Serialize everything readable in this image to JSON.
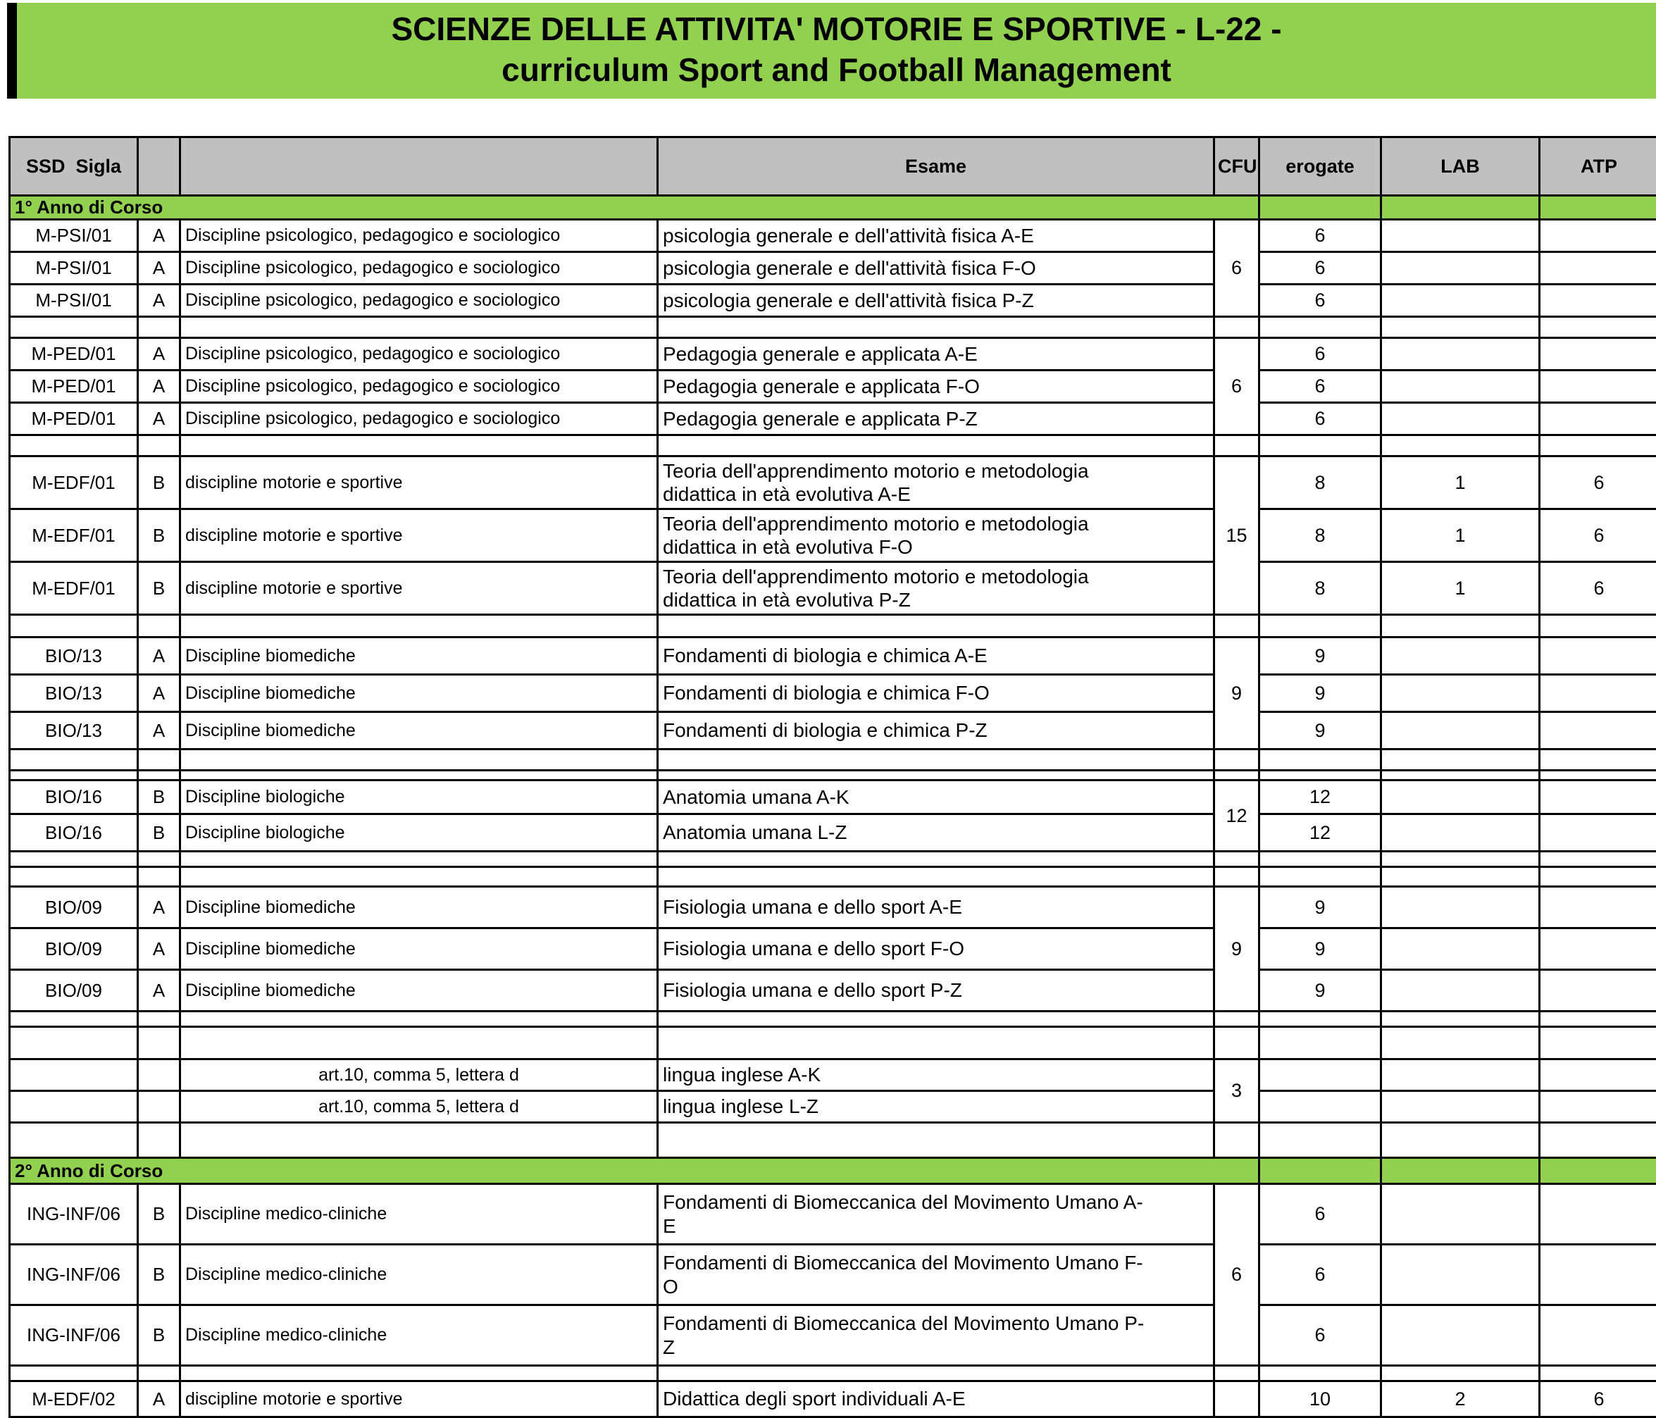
{
  "title": {
    "line1": "SCIENZE DELLE ATTIVITA' MOTORIE E SPORTIVE - L-22 -",
    "line2": "curriculum Sport and Football Management"
  },
  "colors": {
    "banner_green": "#92D050",
    "header_gray": "#C0C0C0",
    "border_black": "#000000"
  },
  "table": {
    "headers": {
      "ssd": "SSD  Sigla",
      "tipo": "",
      "ambito": "",
      "esame": "Esame",
      "cfu": "CFU",
      "erogate": "erogate",
      "lab": "LAB",
      "atp": "ATP"
    },
    "rows": [
      {
        "type": "section",
        "label": "1° Anno di Corso",
        "h": 32
      },
      {
        "type": "course",
        "h": 46,
        "ssd": "M-PSI/01",
        "tipo": "A",
        "ambito": "Discipline psicologico, pedagogico e sociologico",
        "esame": "psicologia generale e dell'attività fisica A-E",
        "cfu": {
          "value": "6",
          "span": 3
        },
        "erogate": "6",
        "lab": "",
        "atp": ""
      },
      {
        "type": "course",
        "h": 46,
        "ssd": "M-PSI/01",
        "tipo": "A",
        "ambito": "Discipline psicologico, pedagogico e sociologico",
        "esame": "psicologia generale e dell'attività fisica F-O",
        "cfu": "merged",
        "erogate": "6",
        "lab": "",
        "atp": ""
      },
      {
        "type": "course",
        "h": 46,
        "ssd": "M-PSI/01",
        "tipo": "A",
        "ambito": "Discipline psicologico, pedagogico e sociologico",
        "esame": "psicologia generale e dell'attività fisica P-Z",
        "cfu": "merged",
        "erogate": "6",
        "lab": "",
        "atp": ""
      },
      {
        "type": "spacer",
        "h": 30
      },
      {
        "type": "course",
        "h": 46,
        "ssd": "M-PED/01",
        "tipo": "A",
        "ambito": "Discipline psicologico, pedagogico e sociologico",
        "esame": "Pedagogia generale e applicata A-E",
        "cfu": {
          "value": "6",
          "span": 3
        },
        "erogate": "6",
        "lab": "",
        "atp": ""
      },
      {
        "type": "course",
        "h": 46,
        "ssd": "M-PED/01",
        "tipo": "A",
        "ambito": "Discipline psicologico, pedagogico e sociologico",
        "esame": "Pedagogia generale e applicata F-O",
        "cfu": "merged",
        "erogate": "6",
        "lab": "",
        "atp": ""
      },
      {
        "type": "course",
        "h": 46,
        "ssd": "M-PED/01",
        "tipo": "A",
        "ambito": "Discipline psicologico, pedagogico e sociologico",
        "esame": "Pedagogia generale e applicata P-Z",
        "cfu": "merged",
        "erogate": "6",
        "lab": "",
        "atp": ""
      },
      {
        "type": "spacer",
        "h": 30
      },
      {
        "type": "course",
        "h": 75,
        "ssd": "M-EDF/01",
        "tipo": "B",
        "ambito": "discipline motorie e sportive",
        "esame": "Teoria dell'apprendimento motorio e metodologia\ndidattica in età evolutiva A-E",
        "cfu": {
          "value": "15",
          "span": 3
        },
        "erogate": "8",
        "lab": "1",
        "atp": "6"
      },
      {
        "type": "course",
        "h": 75,
        "ssd": "M-EDF/01",
        "tipo": "B",
        "ambito": "discipline motorie e sportive",
        "esame": "Teoria dell'apprendimento motorio e metodologia\ndidattica in età evolutiva F-O",
        "cfu": "merged",
        "erogate": "8",
        "lab": "1",
        "atp": "6"
      },
      {
        "type": "course",
        "h": 75,
        "ssd": "M-EDF/01",
        "tipo": "B",
        "ambito": "discipline motorie e sportive",
        "esame": "Teoria dell'apprendimento motorio e metodologia\ndidattica in età evolutiva P-Z",
        "cfu": "merged",
        "erogate": "8",
        "lab": "1",
        "atp": "6"
      },
      {
        "type": "spacer",
        "h": 32
      },
      {
        "type": "course",
        "h": 53,
        "ssd": "BIO/13",
        "tipo": "A",
        "ambito": "Discipline biomediche",
        "esame": "Fondamenti di biologia e chimica A-E",
        "cfu": {
          "value": "9",
          "span": 3
        },
        "erogate": "9",
        "lab": "",
        "atp": ""
      },
      {
        "type": "course",
        "h": 53,
        "ssd": "BIO/13",
        "tipo": "A",
        "ambito": "Discipline biomediche",
        "esame": "Fondamenti di biologia e chimica F-O",
        "cfu": "merged",
        "erogate": "9",
        "lab": "",
        "atp": ""
      },
      {
        "type": "course",
        "h": 53,
        "ssd": "BIO/13",
        "tipo": "A",
        "ambito": "Discipline biomediche",
        "esame": "Fondamenti di biologia e chimica P-Z",
        "cfu": "merged",
        "erogate": "9",
        "lab": "",
        "atp": ""
      },
      {
        "type": "spacer",
        "h": 30
      },
      {
        "type": "spacer",
        "h": 14
      },
      {
        "type": "course",
        "h": 48,
        "ssd": "BIO/16",
        "tipo": "B",
        "ambito": "Discipline biologiche",
        "esame": "Anatomia umana A-K",
        "cfu": {
          "value": "12",
          "span": 2
        },
        "erogate": "12",
        "lab": "",
        "atp": ""
      },
      {
        "type": "course",
        "h": 53,
        "ssd": "BIO/16",
        "tipo": "B",
        "ambito": "Discipline biologiche",
        "esame": "Anatomia umana L-Z",
        "cfu": "merged",
        "erogate": "12",
        "lab": "",
        "atp": ""
      },
      {
        "type": "spacer",
        "h": 22
      },
      {
        "type": "spacer",
        "h": 28
      },
      {
        "type": "course",
        "h": 59,
        "ssd": "BIO/09",
        "tipo": "A",
        "ambito": "Discipline biomediche",
        "esame": "Fisiologia umana e dello sport A-E",
        "cfu": {
          "value": "9",
          "span": 3
        },
        "erogate": "9",
        "lab": "",
        "atp": ""
      },
      {
        "type": "course",
        "h": 59,
        "ssd": "BIO/09",
        "tipo": "A",
        "ambito": "Discipline biomediche",
        "esame": "Fisiologia umana e dello sport F-O",
        "cfu": "merged",
        "erogate": "9",
        "lab": "",
        "atp": ""
      },
      {
        "type": "course",
        "h": 59,
        "ssd": "BIO/09",
        "tipo": "A",
        "ambito": "Discipline biomediche",
        "esame": "Fisiologia umana e dello sport P-Z",
        "cfu": "merged",
        "erogate": "9",
        "lab": "",
        "atp": ""
      },
      {
        "type": "spacer",
        "h": 22
      },
      {
        "type": "spacer",
        "h": 46
      },
      {
        "type": "course",
        "h": 45,
        "ssd": "",
        "tipo": "",
        "ambito": "art.10, comma 5, lettera d",
        "ambito_align": "center",
        "esame": "lingua inglese A-K",
        "cfu": {
          "value": "3",
          "span": 2
        },
        "erogate": "",
        "lab": "",
        "atp": ""
      },
      {
        "type": "course",
        "h": 45,
        "ssd": "",
        "tipo": "",
        "ambito": "art.10, comma 5, lettera d",
        "ambito_align": "center",
        "esame": "lingua inglese L-Z",
        "cfu": "merged",
        "erogate": "",
        "lab": "",
        "atp": ""
      },
      {
        "type": "spacer",
        "h": 50
      },
      {
        "type": "section",
        "label": "2° Anno di Corso",
        "h": 37
      },
      {
        "type": "course",
        "h": 86,
        "ssd": "ING-INF/06",
        "tipo": "B",
        "ambito": "Discipline medico-cliniche",
        "esame": "Fondamenti di Biomeccanica del Movimento Umano A-\nE",
        "cfu": {
          "value": "6",
          "span": 3
        },
        "erogate": "6",
        "lab": "",
        "atp": ""
      },
      {
        "type": "course",
        "h": 86,
        "ssd": "ING-INF/06",
        "tipo": "B",
        "ambito": "Discipline medico-cliniche",
        "esame": "Fondamenti di Biomeccanica del Movimento Umano F-\nO",
        "cfu": "merged",
        "erogate": "6",
        "lab": "",
        "atp": ""
      },
      {
        "type": "course",
        "h": 86,
        "ssd": "ING-INF/06",
        "tipo": "B",
        "ambito": "Discipline medico-cliniche",
        "esame": "Fondamenti di Biomeccanica del Movimento Umano P-\nZ",
        "cfu": "merged",
        "erogate": "6",
        "lab": "",
        "atp": ""
      },
      {
        "type": "spacer",
        "h": 22
      },
      {
        "type": "course",
        "h": 51,
        "ssd": "M-EDF/02",
        "tipo": "A",
        "ambito": "discipline motorie e sportive",
        "esame": "Didattica degli sport individuali A-E",
        "cfu": "open",
        "erogate": "10",
        "lab": "2",
        "atp": "6"
      }
    ]
  }
}
